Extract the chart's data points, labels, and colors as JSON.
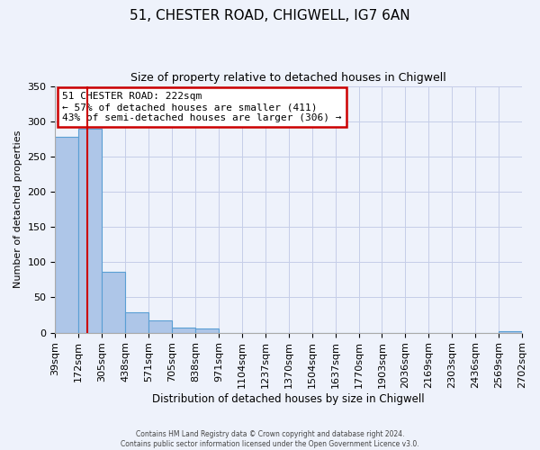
{
  "title": "51, CHESTER ROAD, CHIGWELL, IG7 6AN",
  "subtitle": "Size of property relative to detached houses in Chigwell",
  "xlabel": "Distribution of detached houses by size in Chigwell",
  "ylabel": "Number of detached properties",
  "bin_edges": [
    39,
    172,
    305,
    438,
    571,
    705,
    838,
    971,
    1104,
    1237,
    1370,
    1504,
    1637,
    1770,
    1903,
    2036,
    2169,
    2303,
    2436,
    2569,
    2702
  ],
  "bin_labels": [
    "39sqm",
    "172sqm",
    "305sqm",
    "438sqm",
    "571sqm",
    "705sqm",
    "838sqm",
    "971sqm",
    "1104sqm",
    "1237sqm",
    "1370sqm",
    "1504sqm",
    "1637sqm",
    "1770sqm",
    "1903sqm",
    "2036sqm",
    "2169sqm",
    "2303sqm",
    "2436sqm",
    "2569sqm",
    "2702sqm"
  ],
  "bar_heights": [
    278,
    290,
    86,
    29,
    18,
    7,
    6,
    0,
    0,
    0,
    0,
    0,
    0,
    0,
    0,
    0,
    0,
    0,
    0,
    2
  ],
  "bar_color": "#aec6e8",
  "bar_edge_color": "#5a9fd4",
  "vline_x": 222,
  "vline_color": "#cc0000",
  "ylim": [
    0,
    350
  ],
  "yticks": [
    0,
    50,
    100,
    150,
    200,
    250,
    300,
    350
  ],
  "annotation_box_text": "51 CHESTER ROAD: 222sqm\n← 57% of detached houses are smaller (411)\n43% of semi-detached houses are larger (306) →",
  "annotation_box_color": "#cc0000",
  "annotation_box_facecolor": "#ffffff",
  "footer_line1": "Contains HM Land Registry data © Crown copyright and database right 2024.",
  "footer_line2": "Contains public sector information licensed under the Open Government Licence v3.0.",
  "background_color": "#eef2fb",
  "grid_color": "#c5cde8"
}
